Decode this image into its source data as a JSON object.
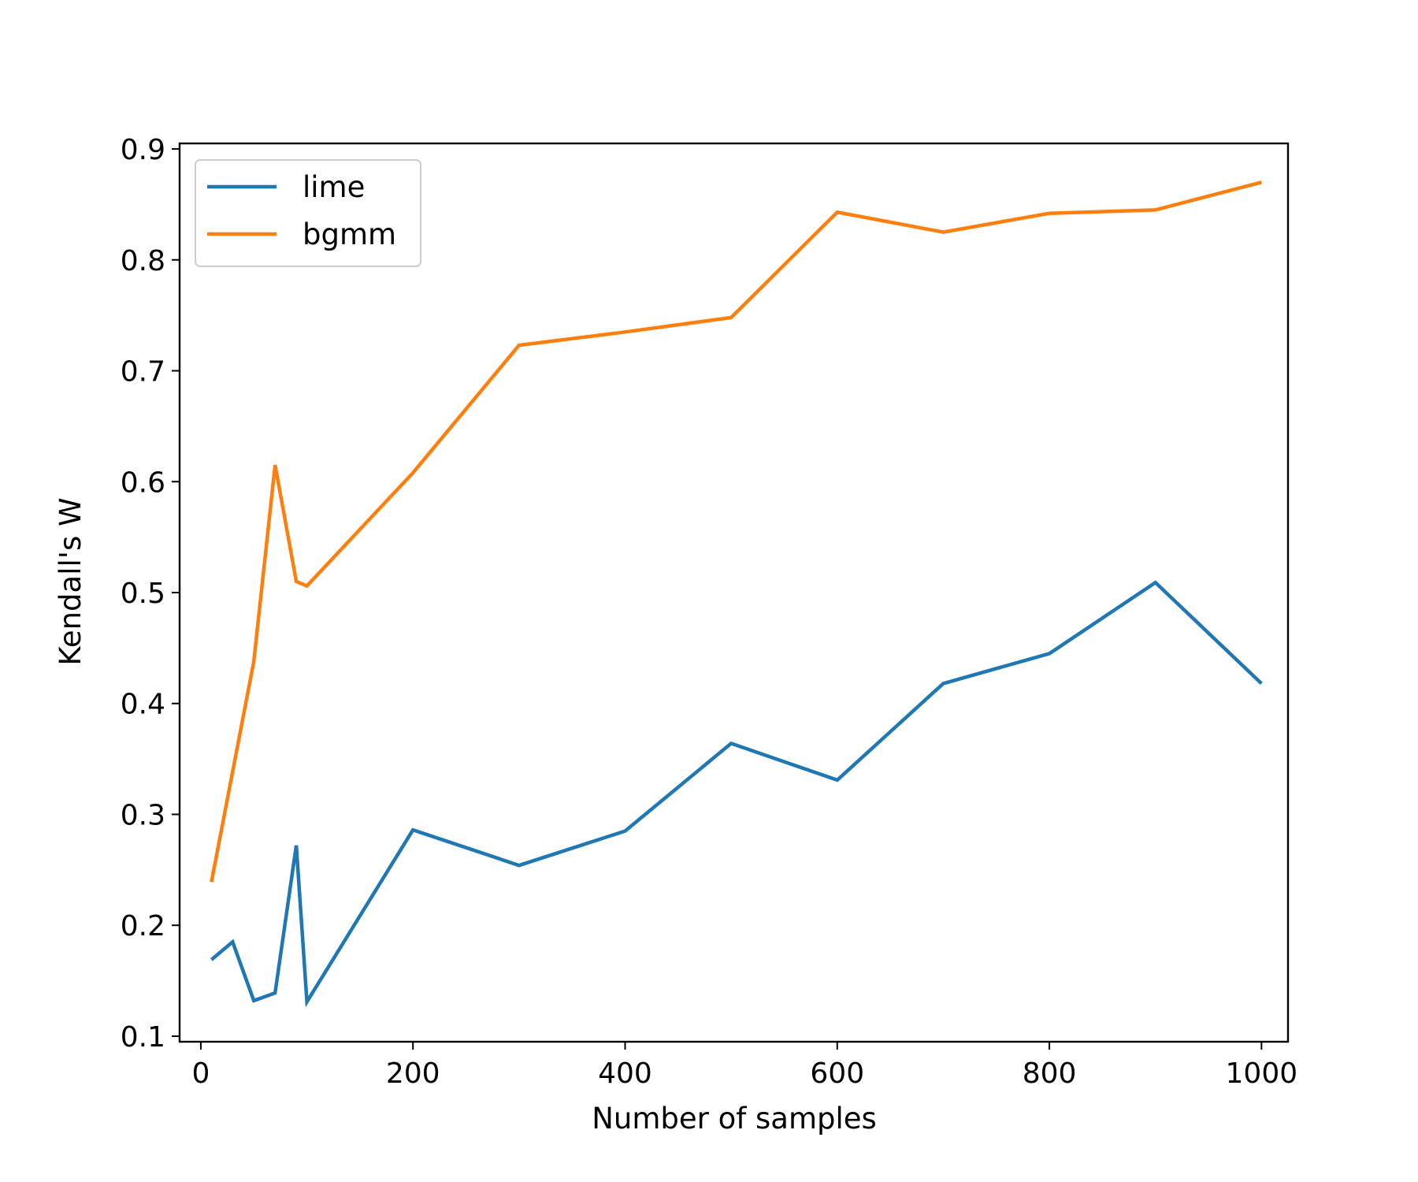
{
  "chart_data": {
    "type": "line",
    "title": "",
    "xlabel": "Number of samples",
    "ylabel": "Kendall's W",
    "xlim": [
      -20,
      1025
    ],
    "ylim": [
      0.095,
      0.905
    ],
    "xticks": [
      0,
      200,
      400,
      600,
      800,
      1000
    ],
    "xtick_labels": [
      "0",
      "200",
      "400",
      "600",
      "800",
      "1000"
    ],
    "yticks": [
      0.1,
      0.2,
      0.3,
      0.4,
      0.5,
      0.6,
      0.7,
      0.8,
      0.9
    ],
    "ytick_labels": [
      "0.1",
      "0.2",
      "0.3",
      "0.4",
      "0.5",
      "0.6",
      "0.7",
      "0.8",
      "0.9"
    ],
    "grid": false,
    "legend_position": "top-left",
    "series": [
      {
        "name": "lime",
        "color": "#1f77b4",
        "x": [
          10,
          30,
          50,
          70,
          90,
          100,
          200,
          300,
          400,
          500,
          600,
          700,
          800,
          900,
          1000
        ],
        "y": [
          0.169,
          0.185,
          0.132,
          0.139,
          0.272,
          0.131,
          0.286,
          0.254,
          0.285,
          0.364,
          0.331,
          0.418,
          0.445,
          0.509,
          0.418
        ]
      },
      {
        "name": "bgmm",
        "color": "#ff7f0e",
        "x": [
          10,
          50,
          70,
          90,
          100,
          200,
          300,
          400,
          500,
          600,
          700,
          800,
          900,
          1000
        ],
        "y": [
          0.239,
          0.438,
          0.615,
          0.51,
          0.506,
          0.608,
          0.723,
          0.735,
          0.748,
          0.843,
          0.825,
          0.842,
          0.845,
          0.87
        ]
      }
    ]
  }
}
